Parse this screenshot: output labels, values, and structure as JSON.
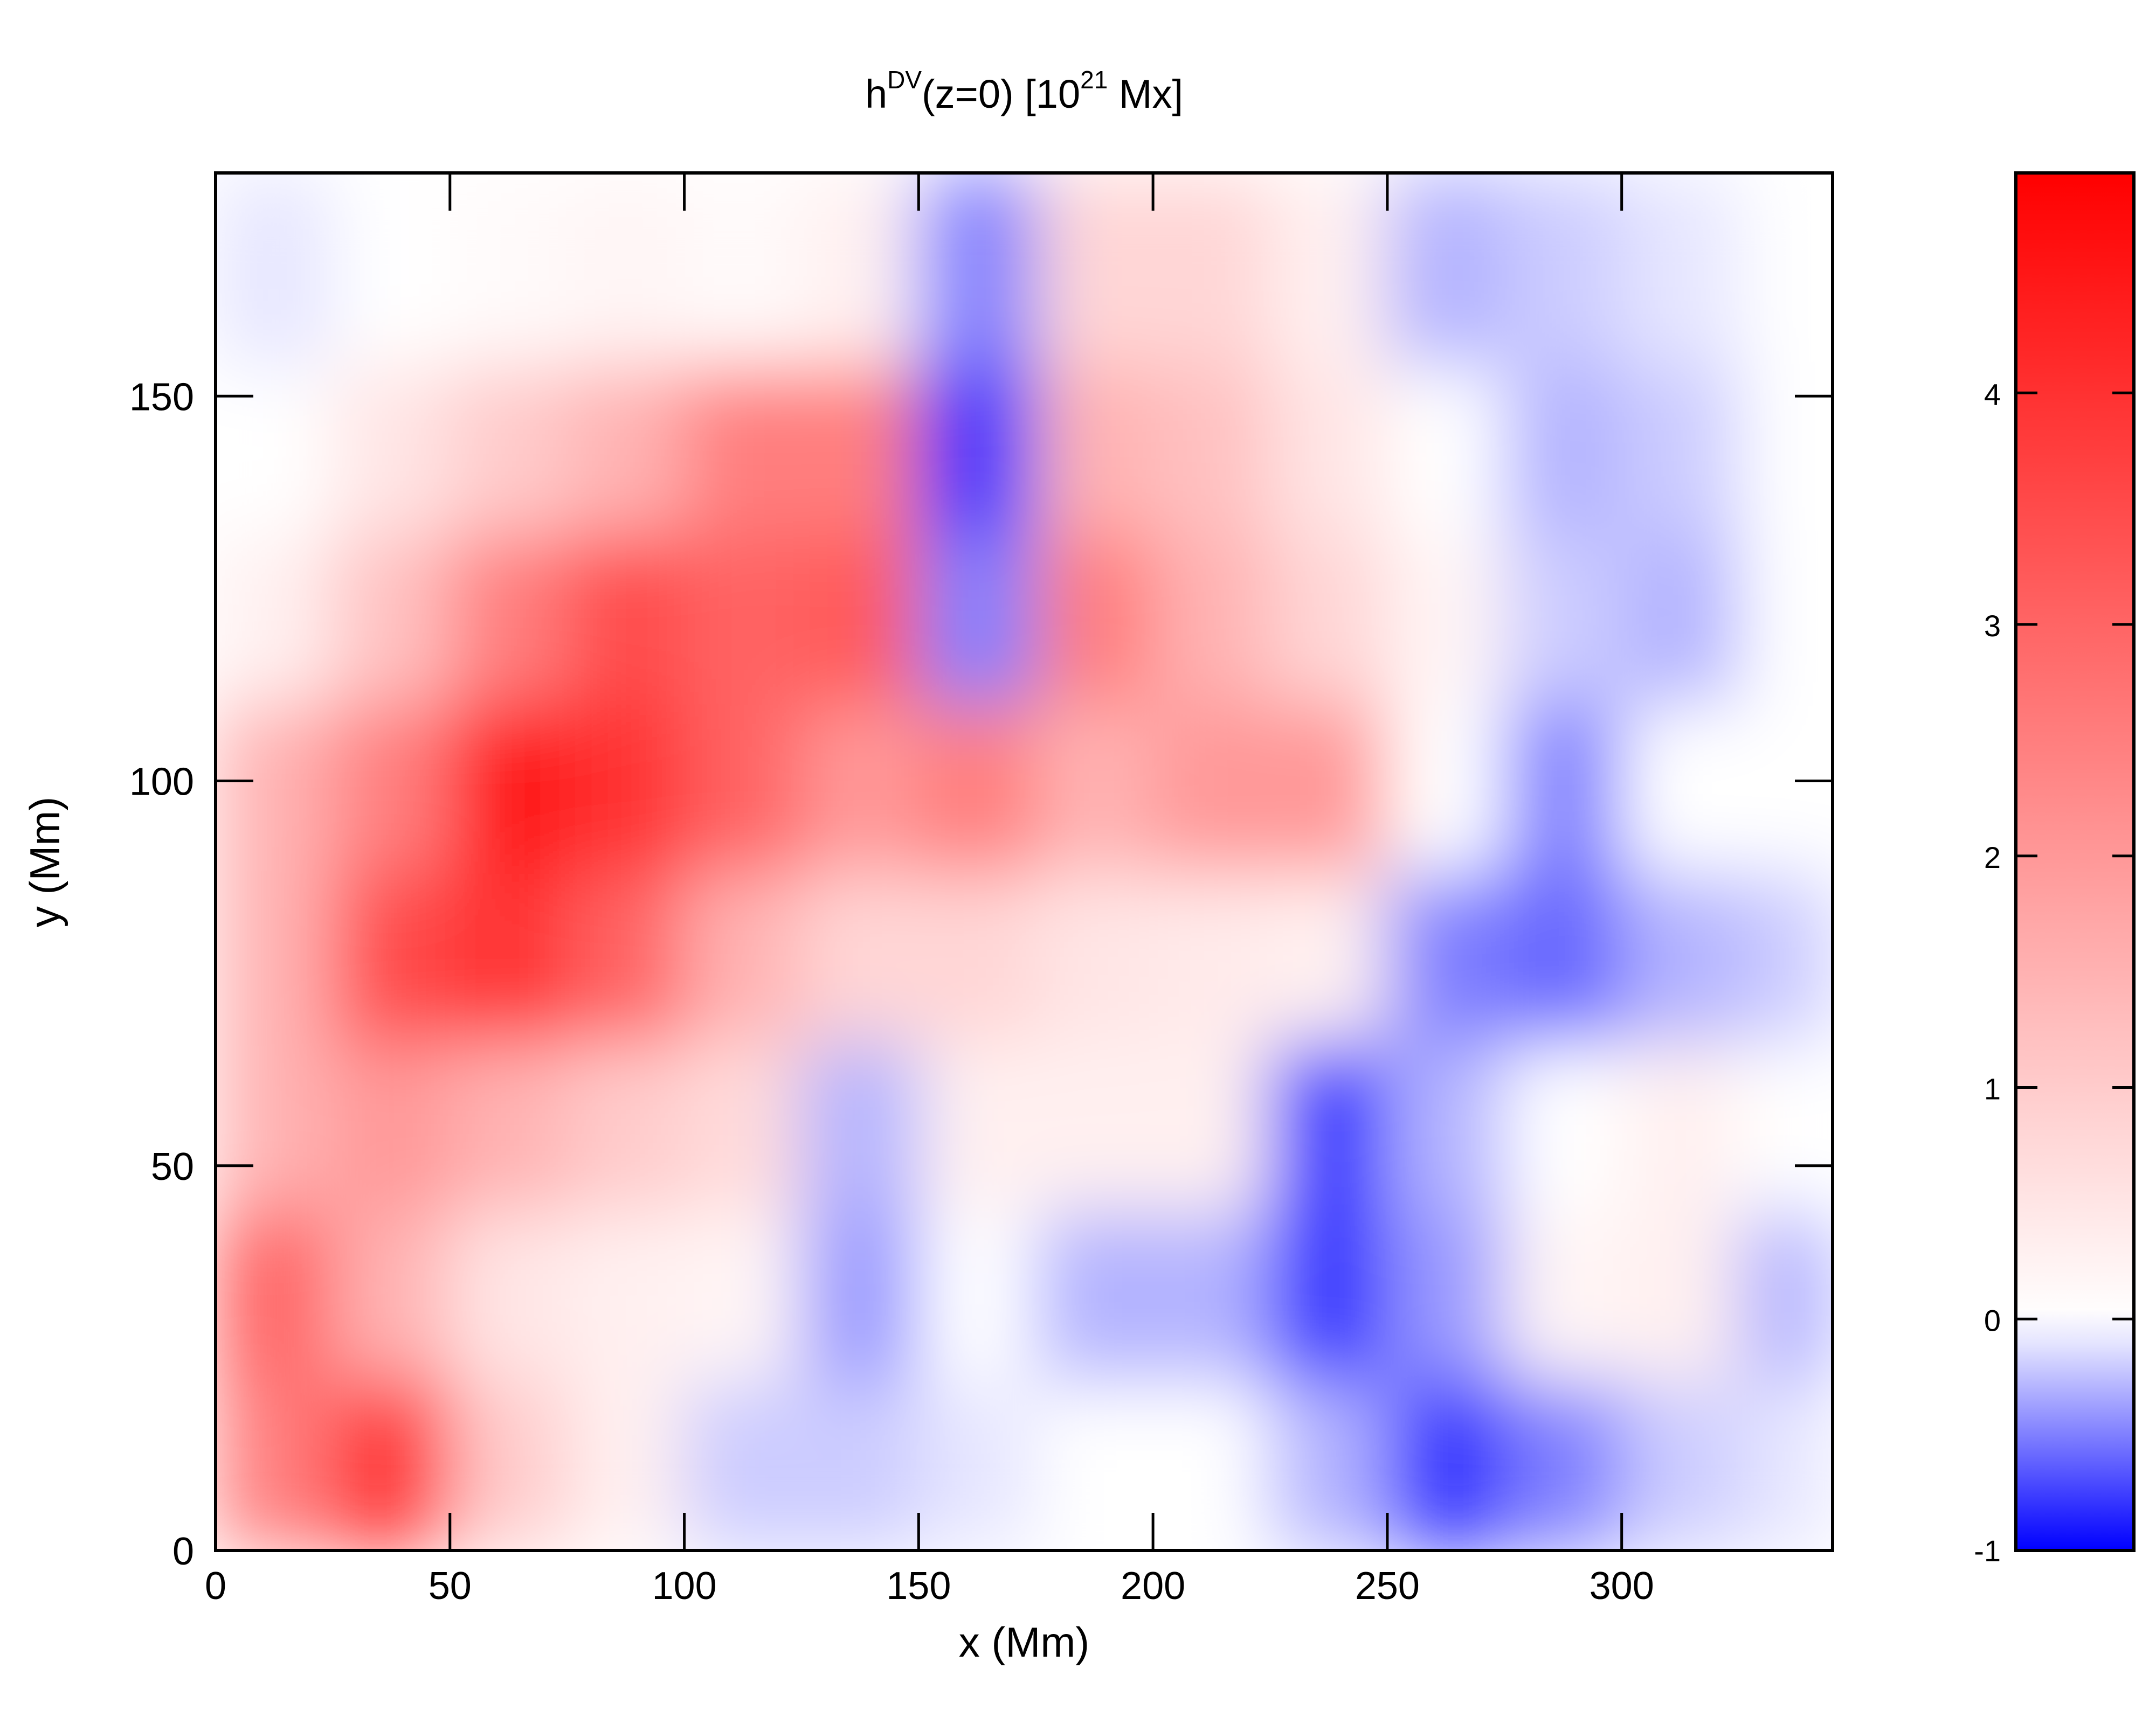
{
  "chart_data": {
    "type": "heatmap",
    "title_parts": [
      "h",
      "DV",
      "(z=0) [10",
      "21",
      " Mx]"
    ],
    "xlabel": "x (Mm)",
    "ylabel": "y (Mm)",
    "xbins": [
      0,
      25,
      50,
      75,
      100,
      125,
      150,
      175,
      200,
      225,
      250,
      275,
      300,
      325,
      345
    ],
    "ybins": [
      0,
      22,
      44,
      66,
      88,
      110,
      132,
      154,
      179
    ],
    "z": [
      [
        2.5,
        4,
        1,
        0.3,
        -0.2,
        -0.2,
        -0.1,
        0,
        0,
        -0.3,
        -0.8,
        -0.5,
        -0.2,
        -0.1
      ],
      [
        3,
        1.5,
        0.5,
        0.3,
        0.2,
        -0.4,
        0,
        -0.3,
        -0.3,
        -0.8,
        -0.4,
        0.2,
        0.3,
        -0.3
      ],
      [
        1.5,
        2,
        1.5,
        1,
        0.7,
        -0.3,
        0.3,
        0.3,
        0.3,
        -0.8,
        -0.3,
        0,
        0.3,
        0
      ],
      [
        1.5,
        3.5,
        4,
        3,
        1.5,
        0.8,
        0.8,
        0.5,
        0.4,
        0.3,
        -0.5,
        -0.6,
        -0.3,
        -0.2
      ],
      [
        1.5,
        2.5,
        4.5,
        4,
        3,
        2,
        2.5,
        1.5,
        2,
        2,
        0,
        -0.5,
        0,
        0
      ],
      [
        0.3,
        1.2,
        2.5,
        3.5,
        3,
        3.2,
        -0.5,
        2.5,
        1.5,
        0.8,
        0.2,
        -0.2,
        -0.3,
        0
      ],
      [
        0,
        0.5,
        1,
        1.5,
        2.5,
        2.5,
        -0.8,
        1.5,
        1.2,
        0.5,
        0,
        -0.3,
        -0.2,
        0
      ],
      [
        -0.1,
        0,
        0.1,
        0.2,
        0.1,
        0.3,
        -0.5,
        0.8,
        0.8,
        0.3,
        -0.3,
        -0.2,
        -0.1,
        0
      ]
    ],
    "xlim": [
      0,
      345
    ],
    "ylim": [
      0,
      179
    ],
    "xticks": [
      0,
      50,
      100,
      150,
      200,
      250,
      300
    ],
    "yticks": [
      0,
      50,
      100,
      150
    ],
    "clim": [
      -1,
      4.95
    ],
    "cticks": [
      -1,
      0,
      1,
      2,
      3,
      4
    ],
    "colors": {
      "low": "#0000ff",
      "mid": "#ffffff",
      "high": "#ff0000"
    }
  }
}
